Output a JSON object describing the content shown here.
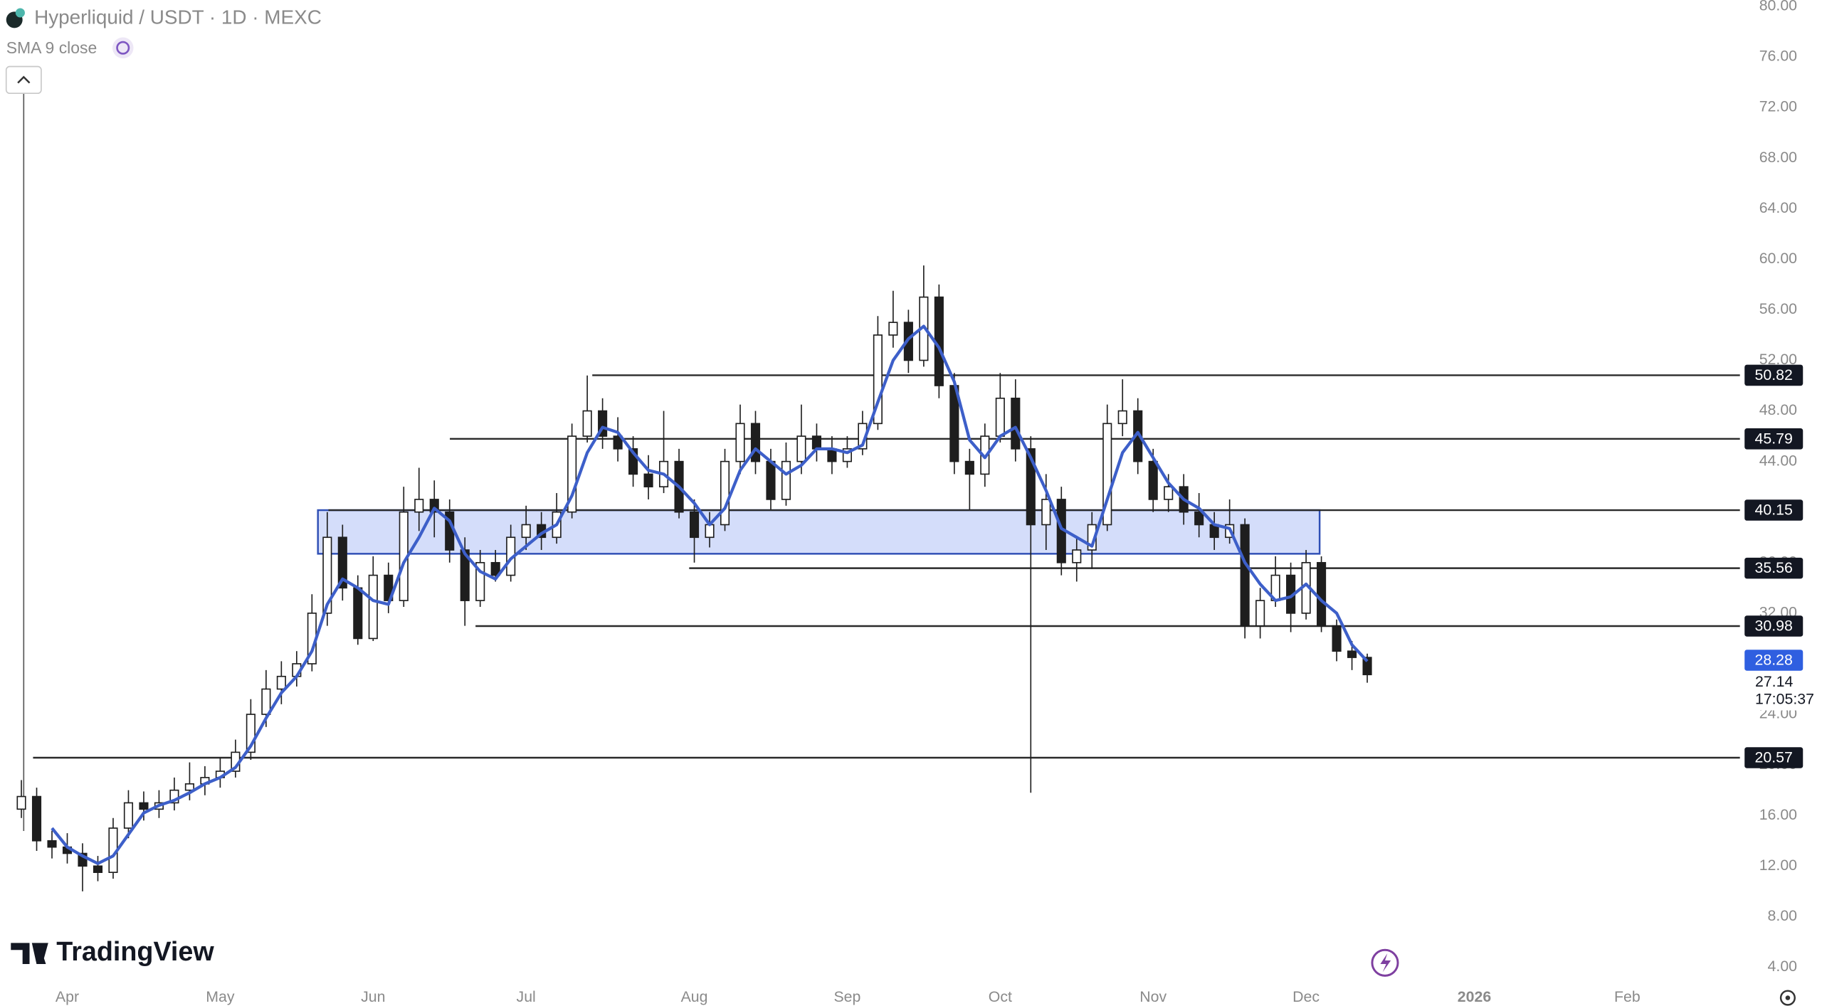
{
  "chart_data": {
    "type": "candlestick",
    "title": "Hyperliquid / USDT · 1D · MEXC",
    "watermark": "TradingView",
    "categories": [
      null,
      null,
      null,
      "Apr",
      null,
      null,
      null,
      null,
      null,
      null,
      null,
      null,
      null,
      "May",
      null,
      null,
      null,
      null,
      null,
      null,
      null,
      null,
      null,
      "Jun",
      null,
      null,
      null,
      null,
      null,
      null,
      null,
      null,
      null,
      "Jul",
      null,
      null,
      null,
      null,
      null,
      null,
      null,
      null,
      null,
      null,
      "Aug",
      null,
      null,
      null,
      null,
      null,
      null,
      null,
      null,
      null,
      "Sep",
      null,
      null,
      null,
      null,
      null,
      null,
      null,
      null,
      null,
      "Oct",
      null,
      null,
      null,
      null,
      null,
      null,
      null,
      null,
      null,
      "Nov",
      null,
      null,
      null,
      null,
      null,
      null,
      null,
      null,
      null,
      "Dec",
      null,
      null,
      null,
      null,
      null,
      null,
      null,
      null,
      null,
      null,
      "2026",
      null,
      null,
      null,
      null,
      null,
      null,
      null,
      null,
      null,
      "Feb",
      null,
      null,
      null,
      null,
      null
    ],
    "open": [
      16.5,
      17.5,
      14,
      13.5,
      13,
      12,
      11.5,
      15,
      17,
      16.5,
      17,
      18,
      18.5,
      19,
      19.5,
      21,
      24,
      26,
      27,
      28,
      32,
      38,
      34,
      30,
      35,
      33,
      40,
      41,
      40,
      37,
      33,
      36,
      35,
      38,
      39,
      38,
      40,
      46,
      48,
      46,
      45,
      43,
      42,
      44,
      40,
      38,
      39,
      44,
      47,
      44,
      41,
      44,
      46,
      45,
      44,
      45,
      47,
      54,
      55,
      52,
      57,
      50,
      44,
      43,
      46,
      49,
      45,
      39,
      41,
      36,
      37,
      39,
      47,
      48,
      44,
      41,
      42,
      40,
      39,
      38,
      39,
      31,
      33,
      35,
      32,
      36,
      31,
      29,
      28.5,
      null,
      null,
      null,
      null,
      null,
      null,
      null,
      null,
      null,
      null,
      null,
      null,
      null,
      null,
      null,
      null,
      null,
      null,
      null,
      null,
      null,
      null
    ],
    "high": [
      18.8,
      18.2,
      14.8,
      14.6,
      13.8,
      12.8,
      15.8,
      18,
      17.9,
      18,
      19,
      20.2,
      19.9,
      20.6,
      22,
      25.2,
      27.5,
      28.2,
      29,
      33.5,
      40,
      39,
      35,
      36.5,
      36,
      42,
      43.5,
      42.5,
      41,
      38,
      37,
      37,
      39,
      40.5,
      40,
      41.5,
      47,
      50.8,
      49,
      47.5,
      46,
      44.5,
      48,
      45,
      41,
      40,
      45,
      48.5,
      48,
      45,
      45.5,
      48.5,
      47,
      46,
      46,
      48,
      55.5,
      57.5,
      56,
      59.5,
      58,
      51,
      45,
      47,
      51,
      50.5,
      46,
      43,
      42,
      38,
      40,
      48.5,
      50.5,
      49,
      45,
      43,
      43,
      41.5,
      40,
      41,
      39.5,
      34,
      36.5,
      36,
      37,
      36.5,
      31.5,
      29.8,
      28.8,
      null,
      null,
      null,
      null,
      null,
      null,
      null,
      null,
      null,
      null,
      null,
      null,
      null,
      null,
      null,
      null,
      null,
      null,
      null,
      null,
      null,
      null
    ],
    "low": [
      15.8,
      13.2,
      12.6,
      12.2,
      10,
      10.8,
      11,
      14.2,
      15.6,
      15.8,
      16.4,
      17.2,
      17.6,
      18.2,
      19,
      20.4,
      23,
      24.8,
      26.2,
      27.4,
      31,
      33,
      29.5,
      29.8,
      32,
      32.5,
      38.5,
      38,
      36,
      31,
      32.5,
      34.5,
      34.5,
      37,
      37,
      37.5,
      39.5,
      45.5,
      45,
      44,
      42,
      41,
      41.5,
      39.5,
      36,
      37.2,
      38.5,
      43,
      43,
      40.2,
      40.5,
      43,
      44,
      43,
      43.5,
      44.5,
      46.5,
      53,
      51,
      51.5,
      49,
      43,
      40.2,
      42,
      45.5,
      44,
      17.8,
      37,
      35,
      34.5,
      35.5,
      38.5,
      46,
      43,
      40,
      40,
      39,
      38,
      37,
      37.5,
      30,
      30,
      32.5,
      30.5,
      31.5,
      30.5,
      28.2,
      27.5,
      26.5,
      null,
      null,
      null,
      null,
      null,
      null,
      null,
      null,
      null,
      null,
      null,
      null,
      null,
      null,
      null,
      null,
      null,
      null,
      null,
      null,
      null,
      null
    ],
    "close": [
      17.5,
      14,
      13.5,
      13,
      12,
      11.5,
      15,
      17,
      16.5,
      17,
      18,
      18.5,
      19,
      19.5,
      21,
      24,
      26,
      27,
      28,
      32,
      38,
      34,
      30,
      35,
      33,
      40,
      41,
      40,
      37,
      33,
      36,
      35,
      38,
      39,
      38,
      40,
      46,
      48,
      46,
      45,
      43,
      42,
      44,
      40,
      38,
      39,
      44,
      47,
      44,
      41,
      44,
      46,
      45,
      44,
      45,
      47,
      54,
      55,
      52,
      57,
      50,
      44,
      43,
      46,
      49,
      45,
      39,
      41,
      36,
      37,
      39,
      47,
      48,
      44,
      41,
      42,
      40,
      39,
      38,
      39,
      31,
      33,
      35,
      32,
      36,
      31,
      29,
      28.5,
      27.14,
      null,
      null,
      null,
      null,
      null,
      null,
      null,
      null,
      null,
      null,
      null,
      null,
      null,
      null,
      null,
      null,
      null,
      null,
      null,
      null,
      null,
      null
    ],
    "up_color": "#ffffff",
    "down_color": "#1e1e1e",
    "indicator": {
      "name": "SMA 9 close",
      "color": "#3d5fc9",
      "last_label": 28.28,
      "values": [
        null,
        null,
        15,
        13.5,
        12.8,
        12.2,
        12.8,
        14.5,
        16.2,
        16.8,
        17.2,
        17.8,
        18.5,
        19,
        19.8,
        21.5,
        23.7,
        25.7,
        27,
        29,
        32.7,
        34.7,
        34,
        33,
        32.7,
        36,
        38,
        40.3,
        39.3,
        36.7,
        35.3,
        34.7,
        36.3,
        37.3,
        38.3,
        39,
        41.3,
        44.7,
        46.7,
        46.3,
        44.7,
        43.3,
        43,
        42,
        40.7,
        39,
        40.3,
        43.3,
        45,
        44,
        43,
        43.7,
        45,
        45,
        44.7,
        45.3,
        48.7,
        52,
        53.7,
        54.7,
        53,
        50.3,
        45.7,
        44.3,
        46,
        46.7,
        44.3,
        41.7,
        38.7,
        38,
        37.3,
        41,
        44.7,
        46.3,
        44.3,
        42.3,
        41,
        40.3,
        39,
        38.7,
        36,
        34.3,
        33,
        33.3,
        34.3,
        33,
        32,
        29.5,
        28.2,
        null,
        null,
        null,
        null,
        null,
        null,
        null,
        null,
        null,
        null,
        null,
        null,
        null,
        null,
        null,
        null,
        null,
        null,
        null,
        null,
        null,
        null
      ]
    },
    "last_price": 27.14,
    "countdown": "17:05:37",
    "levels": [
      50.82,
      45.79,
      40.15,
      35.56,
      30.98,
      20.57
    ],
    "zone": {
      "low": 36.7,
      "high": 40.15
    },
    "ylim": [
      2.5,
      80.5
    ],
    "yticks": [
      {
        "value": 4,
        "label": "4.00"
      },
      {
        "value": 8,
        "label": "8.00"
      },
      {
        "value": 12,
        "label": "12.00"
      },
      {
        "value": 16,
        "label": "16.00"
      },
      {
        "value": 20,
        "label": "20.00"
      },
      {
        "value": 24,
        "label": "24.00"
      },
      {
        "value": 28,
        "label": "28.00"
      },
      {
        "value": 32,
        "label": "32.00"
      },
      {
        "value": 36,
        "label": "36.00"
      },
      {
        "value": 40,
        "label": "40.00"
      },
      {
        "value": 44,
        "label": "44.00"
      },
      {
        "value": 48,
        "label": "48.00"
      },
      {
        "value": 52,
        "label": "52.00"
      },
      {
        "value": 56,
        "label": "56.00"
      },
      {
        "value": 60,
        "label": "60.00"
      },
      {
        "value": 64,
        "label": "64.00"
      },
      {
        "value": 68,
        "label": "68.00"
      },
      {
        "value": 72,
        "label": "72.00"
      },
      {
        "value": 76,
        "label": "76.00"
      },
      {
        "value": 80,
        "label": "80.00"
      }
    ]
  }
}
